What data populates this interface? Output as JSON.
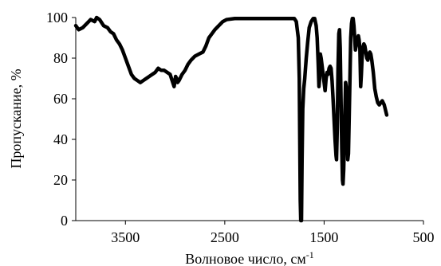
{
  "chart_data": {
    "type": "line",
    "title": "",
    "xlabel": "Волновое число, см",
    "xlabel_superscript": "-1",
    "ylabel": "Пропускание, %",
    "x_reversed": true,
    "xlim": [
      4000,
      500
    ],
    "ylim": [
      0,
      100
    ],
    "xticks": [
      3500,
      2500,
      1500,
      500
    ],
    "yticks": [
      0,
      20,
      40,
      60,
      80,
      100
    ],
    "grid": false,
    "legend": "none",
    "series": [
      {
        "color": "#000000",
        "points": [
          [
            4000,
            96
          ],
          [
            3970,
            94
          ],
          [
            3930,
            95
          ],
          [
            3890,
            97
          ],
          [
            3850,
            99
          ],
          [
            3810,
            98
          ],
          [
            3790,
            100
          ],
          [
            3760,
            99
          ],
          [
            3720,
            96
          ],
          [
            3680,
            95
          ],
          [
            3650,
            93
          ],
          [
            3620,
            92
          ],
          [
            3590,
            89
          ],
          [
            3560,
            87
          ],
          [
            3530,
            84
          ],
          [
            3500,
            80
          ],
          [
            3470,
            76
          ],
          [
            3440,
            72
          ],
          [
            3410,
            70
          ],
          [
            3380,
            69
          ],
          [
            3350,
            68
          ],
          [
            3320,
            69
          ],
          [
            3290,
            70
          ],
          [
            3260,
            71
          ],
          [
            3230,
            72
          ],
          [
            3200,
            73
          ],
          [
            3170,
            75
          ],
          [
            3140,
            74
          ],
          [
            3110,
            74
          ],
          [
            3080,
            73
          ],
          [
            3050,
            72
          ],
          [
            3030,
            69
          ],
          [
            3010,
            66
          ],
          [
            2995,
            71
          ],
          [
            2985,
            70
          ],
          [
            2975,
            68
          ],
          [
            2960,
            69
          ],
          [
            2930,
            72
          ],
          [
            2900,
            74
          ],
          [
            2870,
            77
          ],
          [
            2840,
            79
          ],
          [
            2800,
            81
          ],
          [
            2760,
            82
          ],
          [
            2720,
            83
          ],
          [
            2690,
            86
          ],
          [
            2660,
            90
          ],
          [
            2630,
            92
          ],
          [
            2600,
            94
          ],
          [
            2560,
            96
          ],
          [
            2520,
            98
          ],
          [
            2480,
            99
          ],
          [
            2400,
            99.5
          ],
          [
            2200,
            99.5
          ],
          [
            2000,
            99.5
          ],
          [
            1900,
            99.5
          ],
          [
            1800,
            99.5
          ],
          [
            1780,
            98
          ],
          [
            1760,
            90
          ],
          [
            1750,
            70
          ],
          [
            1745,
            40
          ],
          [
            1740,
            10
          ],
          [
            1735,
            0
          ],
          [
            1728,
            0
          ],
          [
            1722,
            30
          ],
          [
            1715,
            55
          ],
          [
            1705,
            65
          ],
          [
            1695,
            70
          ],
          [
            1680,
            80
          ],
          [
            1665,
            88
          ],
          [
            1650,
            95
          ],
          [
            1630,
            98
          ],
          [
            1610,
            99.5
          ],
          [
            1595,
            99.5
          ],
          [
            1580,
            96
          ],
          [
            1570,
            90
          ],
          [
            1560,
            78
          ],
          [
            1552,
            66
          ],
          [
            1545,
            70
          ],
          [
            1538,
            82
          ],
          [
            1530,
            80
          ],
          [
            1520,
            76
          ],
          [
            1510,
            72
          ],
          [
            1500,
            68
          ],
          [
            1490,
            64
          ],
          [
            1480,
            70
          ],
          [
            1470,
            73
          ],
          [
            1460,
            72
          ],
          [
            1450,
            75
          ],
          [
            1440,
            76
          ],
          [
            1430,
            75
          ],
          [
            1420,
            69
          ],
          [
            1410,
            60
          ],
          [
            1400,
            50
          ],
          [
            1390,
            40
          ],
          [
            1380,
            32
          ],
          [
            1375,
            30
          ],
          [
            1368,
            45
          ],
          [
            1360,
            75
          ],
          [
            1352,
            92
          ],
          [
            1345,
            94
          ],
          [
            1338,
            85
          ],
          [
            1330,
            60
          ],
          [
            1322,
            35
          ],
          [
            1315,
            20
          ],
          [
            1310,
            18
          ],
          [
            1303,
            25
          ],
          [
            1296,
            40
          ],
          [
            1290,
            55
          ],
          [
            1284,
            68
          ],
          [
            1278,
            66
          ],
          [
            1270,
            45
          ],
          [
            1262,
            30
          ],
          [
            1255,
            33
          ],
          [
            1248,
            50
          ],
          [
            1240,
            70
          ],
          [
            1232,
            90
          ],
          [
            1224,
            97
          ],
          [
            1216,
            99.5
          ],
          [
            1208,
            99.5
          ],
          [
            1200,
            96
          ],
          [
            1192,
            90
          ],
          [
            1185,
            84
          ],
          [
            1178,
            86
          ],
          [
            1170,
            88
          ],
          [
            1162,
            90
          ],
          [
            1155,
            91
          ],
          [
            1148,
            89
          ],
          [
            1140,
            85
          ],
          [
            1132,
            66
          ],
          [
            1125,
            72
          ],
          [
            1118,
            80
          ],
          [
            1110,
            85
          ],
          [
            1100,
            87
          ],
          [
            1090,
            86
          ],
          [
            1080,
            83
          ],
          [
            1070,
            80
          ],
          [
            1060,
            79
          ],
          [
            1050,
            82
          ],
          [
            1040,
            83
          ],
          [
            1030,
            82
          ],
          [
            1020,
            79
          ],
          [
            1005,
            73
          ],
          [
            990,
            65
          ],
          [
            975,
            61
          ],
          [
            960,
            58
          ],
          [
            945,
            57
          ],
          [
            930,
            58
          ],
          [
            915,
            59
          ],
          [
            905,
            58
          ],
          [
            895,
            57
          ],
          [
            885,
            55
          ],
          [
            870,
            52
          ]
        ]
      }
    ]
  }
}
